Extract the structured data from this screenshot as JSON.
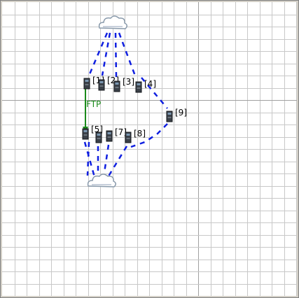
{
  "diagram": {
    "nodes": [
      {
        "id": "cloud-top",
        "kind": "cloud",
        "label": ""
      },
      {
        "id": "n1",
        "kind": "server",
        "label": "[1]"
      },
      {
        "id": "n2",
        "kind": "server",
        "label": "[2]"
      },
      {
        "id": "n3",
        "kind": "server",
        "label": "[3]"
      },
      {
        "id": "n4",
        "kind": "server",
        "label": "[4]"
      },
      {
        "id": "n5",
        "kind": "server",
        "label": "[5]"
      },
      {
        "id": "n6",
        "kind": "server",
        "label": ""
      },
      {
        "id": "n7",
        "kind": "server",
        "label": "[7]"
      },
      {
        "id": "n8",
        "kind": "server",
        "label": "[8]"
      },
      {
        "id": "n9",
        "kind": "server",
        "label": "[9]"
      },
      {
        "id": "cloud-bottom",
        "kind": "cloud",
        "label": ""
      }
    ],
    "flow": {
      "from": "n1",
      "to": "n5",
      "label": "FTP",
      "color": "#1a8a1a"
    },
    "colors": {
      "link": "#1020e0",
      "grid": "#c8c8c8",
      "axis": "#a0a0a0",
      "background": "#ffffff"
    }
  }
}
